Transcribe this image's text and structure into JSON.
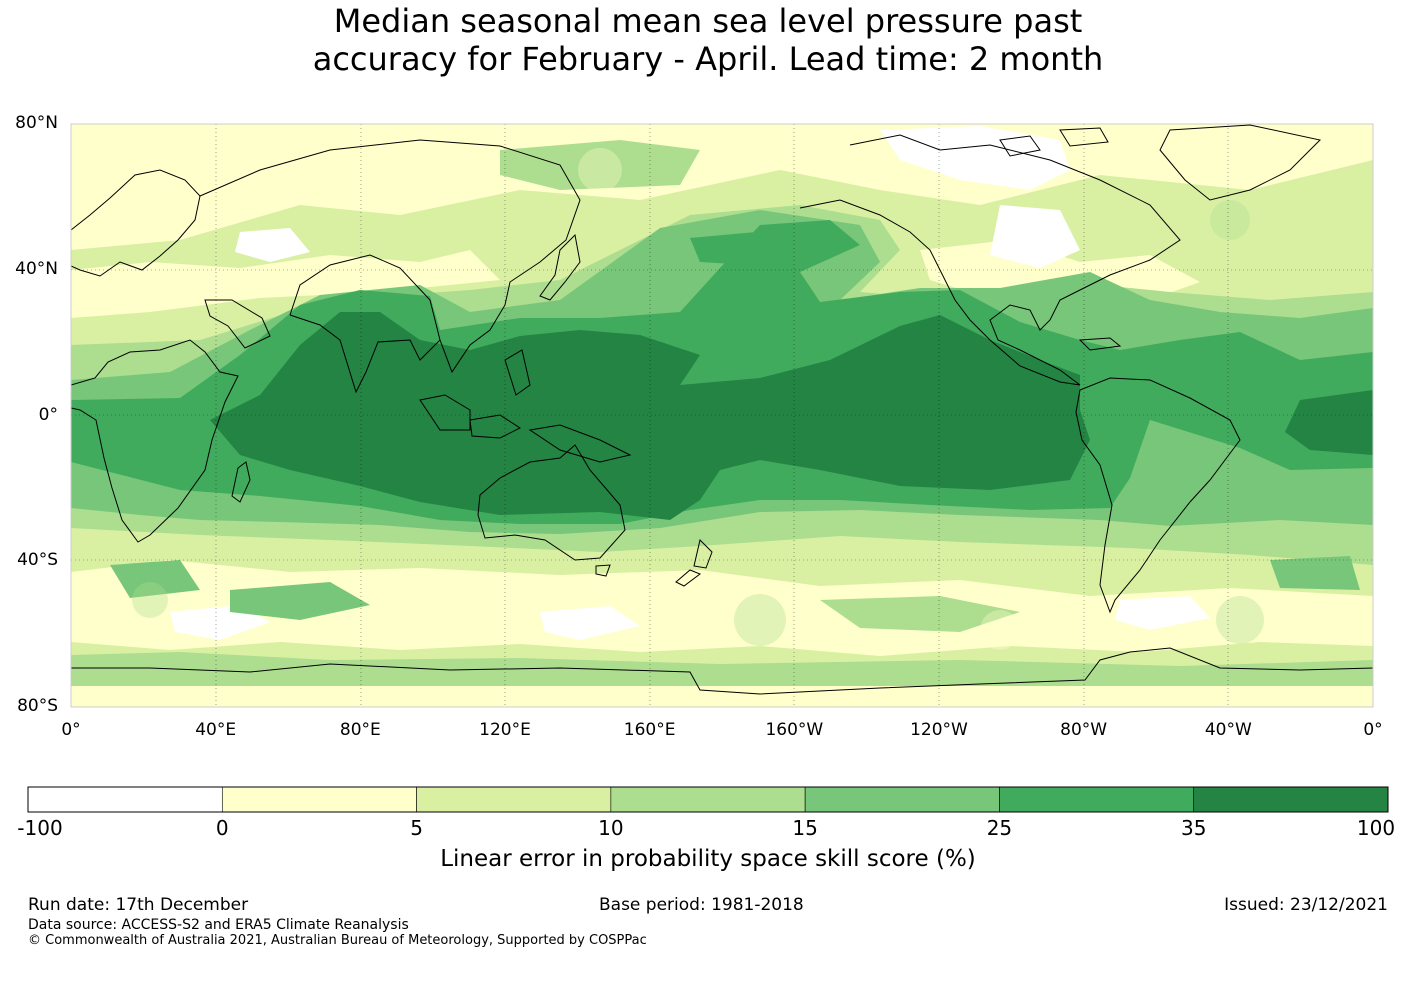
{
  "title": {
    "line1": "Median seasonal mean sea level pressure past",
    "line2": "accuracy for February - April. Lead time: 2 month"
  },
  "map": {
    "lat_labels": [
      "80°N",
      "40°N",
      "0°",
      "40°S",
      "80°S"
    ],
    "lon_labels": [
      "0°",
      "40°E",
      "80°E",
      "120°E",
      "160°E",
      "160°W",
      "120°W",
      "80°W",
      "40°W",
      "0°"
    ],
    "lat_values": [
      80,
      40,
      0,
      -40,
      -80
    ],
    "lon_values": [
      0,
      40,
      80,
      120,
      160,
      200,
      240,
      280,
      320,
      360
    ],
    "lon_range": [
      0,
      360
    ],
    "lat_range": [
      -80,
      80
    ],
    "gridlines": true,
    "projection": "equirectangular, centred on 180°"
  },
  "colorbar": {
    "ticks": [
      "-100",
      "0",
      "5",
      "10",
      "15",
      "25",
      "35",
      "100"
    ],
    "colors": [
      "#ffffff",
      "#ffffcc",
      "#d9f0a3",
      "#addd8e",
      "#78c679",
      "#41ab5d",
      "#238443"
    ],
    "label": "Linear error in probability space skill score (%)"
  },
  "footer": {
    "run_date": "Run date: 17th December",
    "base_period": "Base period: 1981-2018",
    "issued": "Issued: 23/12/2021",
    "data_source": "Data source: ACCESS-S2 and ERA5 Climate Reanalysis",
    "copyright": "© Commonwealth of Australia 2021, Australian Bureau of Meteorology, Supported by COSPPac"
  }
}
